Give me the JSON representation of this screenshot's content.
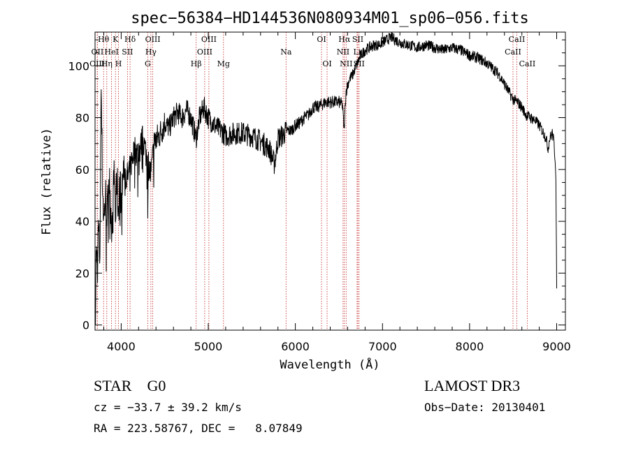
{
  "chart_data": {
    "type": "line",
    "title": "spec−56384−HD144536N080934M01_sp06−056.fits",
    "xlabel": "Wavelength (Å)",
    "ylabel": "Flux (relative)",
    "xlim": [
      3700,
      9100
    ],
    "ylim": [
      -2,
      113
    ],
    "xticks": [
      {
        "value": 4000,
        "label": "4000"
      },
      {
        "value": 5000,
        "label": "5000"
      },
      {
        "value": 6000,
        "label": "6000"
      },
      {
        "value": 7000,
        "label": "7000"
      },
      {
        "value": 8000,
        "label": "8000"
      },
      {
        "value": 9000,
        "label": "9000"
      }
    ],
    "yticks": [
      {
        "value": 0,
        "label": "0"
      },
      {
        "value": 20,
        "label": "20"
      },
      {
        "value": 40,
        "label": "40"
      },
      {
        "value": 60,
        "label": "60"
      },
      {
        "value": 80,
        "label": "80"
      },
      {
        "value": 100,
        "label": "100"
      }
    ],
    "spectrum_anchors": [
      [
        3705,
        5
      ],
      [
        3712,
        28
      ],
      [
        3725,
        22
      ],
      [
        3740,
        38
      ],
      [
        3755,
        25
      ],
      [
        3770,
        95
      ],
      [
        3785,
        55
      ],
      [
        3800,
        40
      ],
      [
        3820,
        50
      ],
      [
        3840,
        42
      ],
      [
        3860,
        58
      ],
      [
        3880,
        45
      ],
      [
        3900,
        36
      ],
      [
        3920,
        62
      ],
      [
        3935,
        40
      ],
      [
        3950,
        58
      ],
      [
        3968,
        44
      ],
      [
        3985,
        56
      ],
      [
        4000,
        48
      ],
      [
        4030,
        62
      ],
      [
        4060,
        56
      ],
      [
        4100,
        60
      ],
      [
        4150,
        68
      ],
      [
        4200,
        66
      ],
      [
        4250,
        72
      ],
      [
        4300,
        64
      ],
      [
        4340,
        58
      ],
      [
        4380,
        70
      ],
      [
        4450,
        74
      ],
      [
        4500,
        78
      ],
      [
        4550,
        76
      ],
      [
        4600,
        80
      ],
      [
        4650,
        82
      ],
      [
        4700,
        80
      ],
      [
        4750,
        83
      ],
      [
        4800,
        80
      ],
      [
        4860,
        72
      ],
      [
        4900,
        80
      ],
      [
        4950,
        84
      ],
      [
        5000,
        80
      ],
      [
        5050,
        78
      ],
      [
        5100,
        76
      ],
      [
        5150,
        75
      ],
      [
        5200,
        73
      ],
      [
        5300,
        74
      ],
      [
        5400,
        74
      ],
      [
        5500,
        73
      ],
      [
        5600,
        71
      ],
      [
        5700,
        68
      ],
      [
        5760,
        62
      ],
      [
        5800,
        72
      ],
      [
        5850,
        73
      ],
      [
        5900,
        75
      ],
      [
        5950,
        75
      ],
      [
        6000,
        77
      ],
      [
        6050,
        78
      ],
      [
        6100,
        80
      ],
      [
        6150,
        81
      ],
      [
        6200,
        84
      ],
      [
        6250,
        84
      ],
      [
        6300,
        85
      ],
      [
        6350,
        86
      ],
      [
        6400,
        86
      ],
      [
        6450,
        86
      ],
      [
        6500,
        86
      ],
      [
        6540,
        85
      ],
      [
        6560,
        75
      ],
      [
        6580,
        90
      ],
      [
        6620,
        95
      ],
      [
        6650,
        96
      ],
      [
        6700,
        100
      ],
      [
        6750,
        104
      ],
      [
        6800,
        106
      ],
      [
        6850,
        107
      ],
      [
        6900,
        108
      ],
      [
        6950,
        108
      ],
      [
        7000,
        109
      ],
      [
        7050,
        110
      ],
      [
        7100,
        111
      ],
      [
        7150,
        110
      ],
      [
        7200,
        109
      ],
      [
        7300,
        108
      ],
      [
        7400,
        107
      ],
      [
        7500,
        108
      ],
      [
        7600,
        107
      ],
      [
        7700,
        106
      ],
      [
        7800,
        107
      ],
      [
        7900,
        106
      ],
      [
        8000,
        104
      ],
      [
        8100,
        103
      ],
      [
        8200,
        101
      ],
      [
        8300,
        98
      ],
      [
        8350,
        96
      ],
      [
        8400,
        93
      ],
      [
        8450,
        90
      ],
      [
        8500,
        87
      ],
      [
        8550,
        86
      ],
      [
        8600,
        84
      ],
      [
        8650,
        81
      ],
      [
        8700,
        80
      ],
      [
        8750,
        79
      ],
      [
        8800,
        77
      ],
      [
        8850,
        74
      ],
      [
        8880,
        72
      ],
      [
        8900,
        68
      ],
      [
        8920,
        72
      ],
      [
        8950,
        74
      ],
      [
        8970,
        70
      ],
      [
        8990,
        60
      ],
      [
        9000,
        12
      ]
    ],
    "lines": [
      {
        "label": "Hθ",
        "wave": 3798,
        "row": 1
      },
      {
        "label": "OII",
        "wave": 3727,
        "row": 2
      },
      {
        "label": "OIII",
        "wave": 3725,
        "row": 3
      },
      {
        "label": "K",
        "wave": 3934,
        "row": 1
      },
      {
        "label": "HeI",
        "wave": 3889,
        "row": 2
      },
      {
        "label": "Hη",
        "wave": 3835,
        "row": 3
      },
      {
        "label": "SII",
        "wave": 4072,
        "row": 2
      },
      {
        "label": "H",
        "wave": 3969,
        "row": 3
      },
      {
        "label": "Hδ",
        "wave": 4102,
        "row": 1
      },
      {
        "label": "OIII",
        "wave": 4363,
        "row": 1
      },
      {
        "label": "Hγ",
        "wave": 4341,
        "row": 2
      },
      {
        "label": "G",
        "wave": 4305,
        "row": 3
      },
      {
        "label": "Hβ",
        "wave": 4861,
        "row": 3
      },
      {
        "label": "OIII",
        "wave": 5007,
        "row": 1
      },
      {
        "label": "OIII",
        "wave": 4959,
        "row": 2
      },
      {
        "label": "Mg",
        "wave": 5175,
        "row": 3
      },
      {
        "label": "Na",
        "wave": 5893,
        "row": 2
      },
      {
        "label": "OI",
        "wave": 6300,
        "row": 1
      },
      {
        "label": "OI",
        "wave": 6364,
        "row": 3
      },
      {
        "label": "Hα",
        "wave": 6563,
        "row": 1
      },
      {
        "label": "NII",
        "wave": 6548,
        "row": 2
      },
      {
        "label": "NII",
        "wave": 6583,
        "row": 3
      },
      {
        "label": "SII",
        "wave": 6717,
        "row": 1
      },
      {
        "label": "Li",
        "wave": 6708,
        "row": 2
      },
      {
        "label": "SII",
        "wave": 6731,
        "row": 3
      },
      {
        "label": "CaII",
        "wave": 8542,
        "row": 1
      },
      {
        "label": "CaII",
        "wave": 8498,
        "row": 2
      },
      {
        "label": "CaII",
        "wave": 8662,
        "row": 3
      }
    ]
  },
  "info": {
    "object_type": "STAR",
    "subclass": "G0",
    "survey": "LAMOST DR3",
    "cz": "cz = −33.7 ± 39.2 km/s",
    "obs_date": "Obs−Date: 20130401",
    "ra_dec": "RA = 223.58767, DEC =   8.07849"
  },
  "colors": {
    "line_marker": "#c02020",
    "spectrum": "#000000",
    "axes": "#000000"
  }
}
